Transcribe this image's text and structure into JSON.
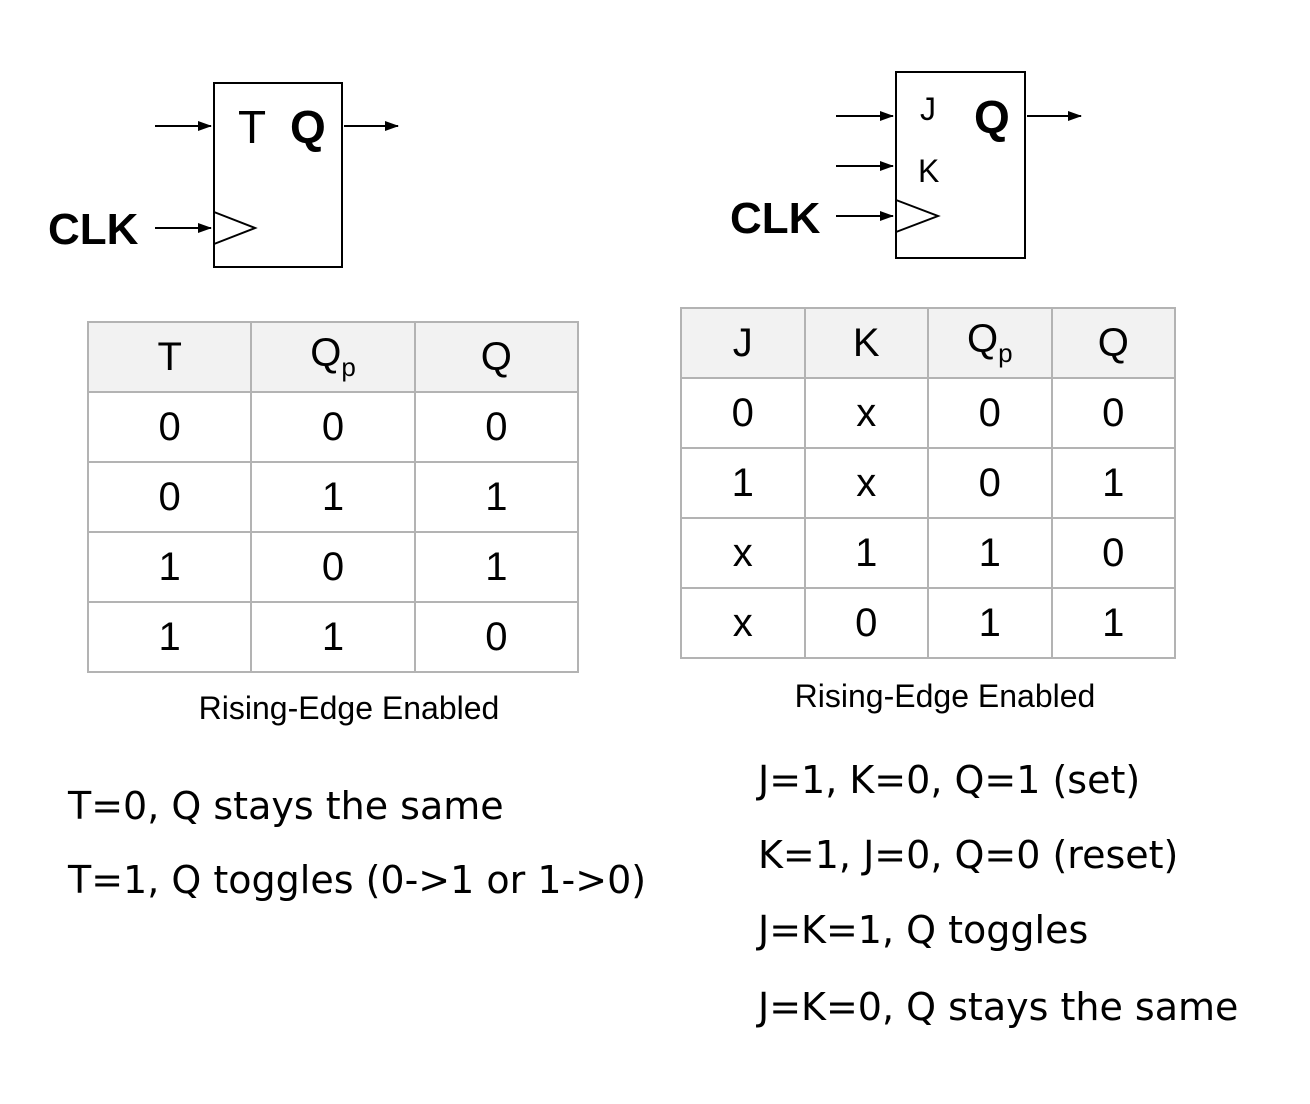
{
  "t_flipflop": {
    "clk_label": "CLK",
    "input_label": "T",
    "output_label": "Q",
    "table": {
      "headers": [
        "T",
        "Q",
        "Q"
      ],
      "header_subscripts": [
        "",
        "p",
        ""
      ],
      "rows": [
        [
          "0",
          "0",
          "0"
        ],
        [
          "0",
          "1",
          "1"
        ],
        [
          "1",
          "0",
          "1"
        ],
        [
          "1",
          "1",
          "0"
        ]
      ]
    },
    "caption": "Rising-Edge Enabled",
    "notes": [
      "T=0, Q stays the same",
      "T=1, Q toggles (0->1 or 1->0)"
    ]
  },
  "jk_flipflop": {
    "clk_label": "CLK",
    "input_j_label": "J",
    "input_k_label": "K",
    "output_label": "Q",
    "table": {
      "headers": [
        "J",
        "K",
        "Q",
        "Q"
      ],
      "header_subscripts": [
        "",
        "",
        "p",
        ""
      ],
      "rows": [
        [
          "0",
          "x",
          "0",
          "0"
        ],
        [
          "1",
          "x",
          "0",
          "1"
        ],
        [
          "x",
          "1",
          "1",
          "0"
        ],
        [
          "x",
          "0",
          "1",
          "1"
        ]
      ]
    },
    "caption": "Rising-Edge Enabled",
    "notes": [
      "J=1, K=0, Q=1 (set)",
      "K=1, J=0, Q=0 (reset)",
      "J=K=1, Q toggles",
      "J=K=0, Q stays the same"
    ]
  }
}
